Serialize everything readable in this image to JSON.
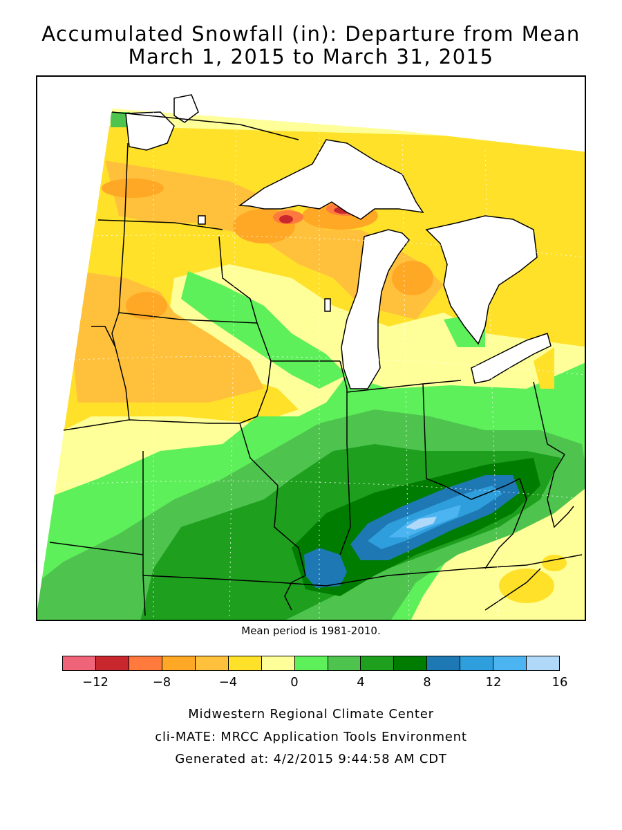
{
  "title": {
    "line1": "Accumulated Snowfall (in): Departure from Mean",
    "line2": "March 1, 2015 to March 31, 2015"
  },
  "map": {
    "mean_note": "Mean period is 1981-2010.",
    "variable": "Accumulated Snowfall departure from mean",
    "units": "in"
  },
  "legend": {
    "colors": [
      "#f0647a",
      "#c8282d",
      "#ff7a3c",
      "#ffa826",
      "#ffc13c",
      "#ffe12a",
      "#ffff99",
      "#5ef05a",
      "#4ec44e",
      "#1ea01e",
      "#007d00",
      "#1e78b4",
      "#2e9fdc",
      "#4cb4f0",
      "#b0d8f8"
    ],
    "tick_labels": [
      "−12",
      "−8",
      "−4",
      "0",
      "4",
      "8",
      "12",
      "16"
    ]
  },
  "footer": {
    "line1": "Midwestern Regional Climate Center",
    "line2": "cli-MATE: MRCC Application Tools Environment",
    "line3": "Generated at: 4/2/2015 9:44:58 AM CDT"
  }
}
